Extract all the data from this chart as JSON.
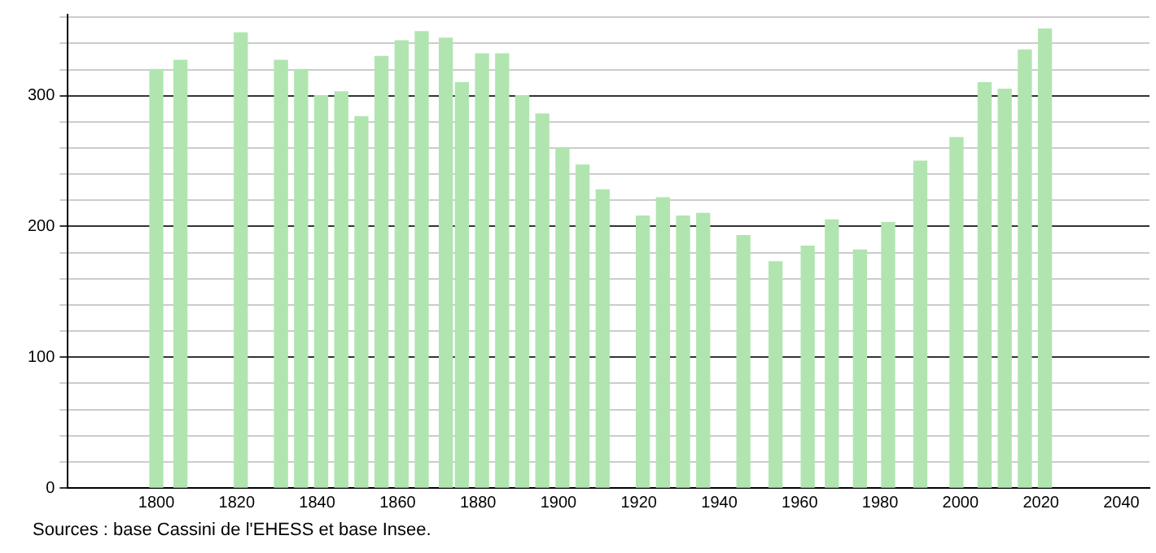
{
  "chart_data": {
    "type": "bar",
    "color": "#b0e5b0",
    "x": [
      1800,
      1806,
      1821,
      1831,
      1836,
      1841,
      1846,
      1851,
      1856,
      1861,
      1866,
      1872,
      1876,
      1881,
      1886,
      1891,
      1896,
      1901,
      1906,
      1911,
      1921,
      1926,
      1931,
      1936,
      1946,
      1954,
      1962,
      1968,
      1975,
      1982,
      1990,
      1999,
      2006,
      2011,
      2016,
      2021
    ],
    "values": [
      320,
      327,
      348,
      327,
      320,
      300,
      303,
      284,
      330,
      342,
      349,
      344,
      310,
      332,
      332,
      300,
      286,
      260,
      247,
      228,
      208,
      222,
      208,
      210,
      193,
      173,
      185,
      205,
      182,
      203,
      250,
      268,
      310,
      305,
      335,
      351
    ],
    "xlim": [
      1778,
      2047
    ],
    "xticks": [
      1800,
      1820,
      1840,
      1860,
      1880,
      1900,
      1920,
      1940,
      1960,
      1980,
      2000,
      2020,
      2040
    ],
    "ylim": [
      0,
      362
    ],
    "yticks": [
      0,
      {
        "value": 20,
        "label": null
      },
      {
        "value": 40,
        "label": null
      },
      {
        "value": 60,
        "label": null
      },
      {
        "value": 80,
        "label": null
      },
      100,
      {
        "value": 120,
        "label": null
      },
      {
        "value": 140,
        "label": null
      },
      {
        "value": 160,
        "label": null
      },
      {
        "value": 180,
        "label": null
      },
      200,
      {
        "value": 220,
        "label": null
      },
      {
        "value": 240,
        "label": null
      },
      {
        "value": 260,
        "label": null
      },
      {
        "value": 280,
        "label": null
      },
      300,
      {
        "value": 320,
        "label": null
      },
      {
        "value": 340,
        "label": null
      },
      {
        "value": 360,
        "label": null
      }
    ],
    "grid": "y",
    "legend": false,
    "annotations": [
      "Sources : base Cassini de l'EHESS et base Insee."
    ]
  }
}
